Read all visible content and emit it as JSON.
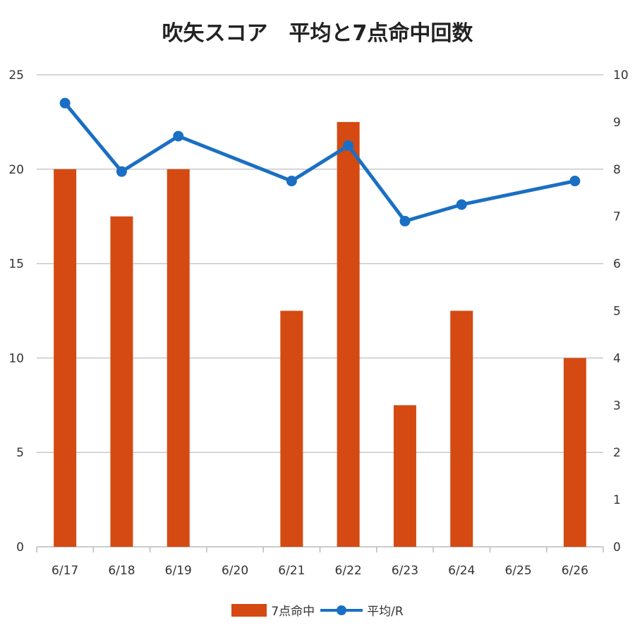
{
  "chart_data": {
    "type": "bar+line",
    "title": "吹矢スコア　平均と7点命中回数",
    "categories": [
      "6/17",
      "6/18",
      "6/19",
      "6/20",
      "6/21",
      "6/22",
      "6/23",
      "6/24",
      "6/25",
      "6/26"
    ],
    "series": [
      {
        "name": "7点命中",
        "type": "bar",
        "axis": "left",
        "color": "#D44A12",
        "values": [
          20,
          17.5,
          20,
          null,
          12.5,
          22.5,
          7.5,
          12.5,
          null,
          10
        ]
      },
      {
        "name": "平均/R",
        "type": "line",
        "axis": "right",
        "color": "#1A6FC4",
        "values": [
          9.4,
          7.95,
          8.7,
          null,
          7.75,
          8.5,
          6.9,
          7.25,
          null,
          7.75
        ]
      }
    ],
    "y_left": {
      "range": [
        0,
        25
      ],
      "ticks": [
        "0",
        "5",
        "10",
        "15",
        "20",
        "25"
      ]
    },
    "y_right": {
      "range": [
        0,
        10
      ],
      "ticks": [
        "0",
        "1",
        "2",
        "3",
        "4",
        "5",
        "6",
        "7",
        "8",
        "9",
        "10"
      ]
    },
    "grid": true,
    "legend_position": "bottom"
  }
}
